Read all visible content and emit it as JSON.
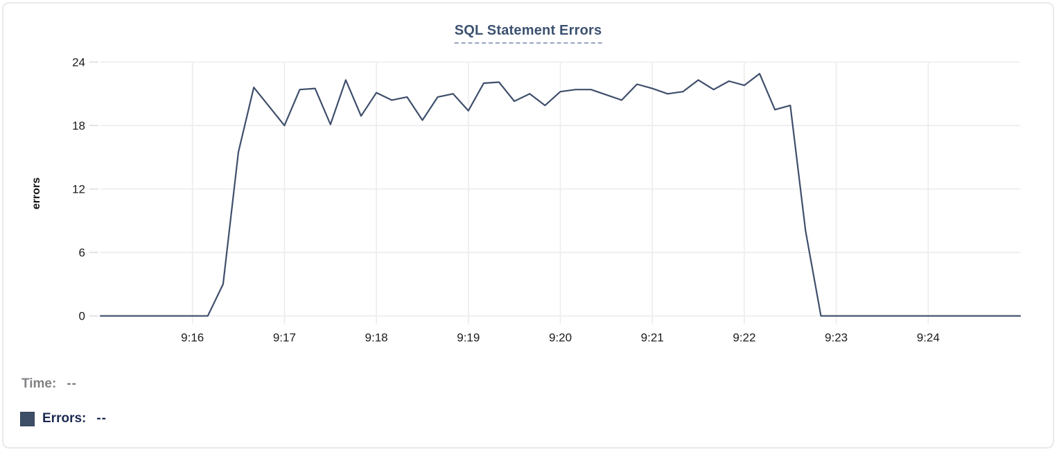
{
  "chart_data": {
    "type": "line",
    "title": "SQL Statement Errors",
    "xlabel": "",
    "ylabel": "errors",
    "ylim": [
      0,
      24
    ],
    "y_ticks": [
      0,
      6,
      12,
      18,
      24
    ],
    "x_tick_labels": [
      "9:16",
      "9:17",
      "9:18",
      "9:19",
      "9:20",
      "9:21",
      "9:22",
      "9:23",
      "9:24"
    ],
    "x_tick_seconds": [
      60,
      120,
      180,
      240,
      300,
      360,
      420,
      480,
      540
    ],
    "x_domain_seconds": [
      0,
      600
    ],
    "x_domain_times": [
      "9:15:00",
      "9:25:00"
    ],
    "grid": true,
    "legend_position": "none",
    "series": [
      {
        "name": "Errors",
        "color": "#3e4e6b",
        "points_sec_value": [
          [
            0,
            0
          ],
          [
            10,
            0
          ],
          [
            20,
            0
          ],
          [
            30,
            0
          ],
          [
            40,
            0
          ],
          [
            50,
            0
          ],
          [
            60,
            0
          ],
          [
            70,
            0
          ],
          [
            80,
            3
          ],
          [
            90,
            15.5
          ],
          [
            100,
            21.6
          ],
          [
            110,
            19.8
          ],
          [
            120,
            18
          ],
          [
            130,
            21.4
          ],
          [
            140,
            21.5
          ],
          [
            150,
            18.1
          ],
          [
            160,
            22.3
          ],
          [
            170,
            18.9
          ],
          [
            180,
            21.1
          ],
          [
            190,
            20.4
          ],
          [
            200,
            20.7
          ],
          [
            210,
            18.5
          ],
          [
            220,
            20.7
          ],
          [
            230,
            21
          ],
          [
            240,
            19.4
          ],
          [
            250,
            22
          ],
          [
            260,
            22.1
          ],
          [
            270,
            20.3
          ],
          [
            280,
            21
          ],
          [
            290,
            19.9
          ],
          [
            300,
            21.2
          ],
          [
            310,
            21.4
          ],
          [
            320,
            21.4
          ],
          [
            330,
            20.9
          ],
          [
            340,
            20.4
          ],
          [
            350,
            21.9
          ],
          [
            360,
            21.5
          ],
          [
            370,
            21
          ],
          [
            380,
            21.2
          ],
          [
            390,
            22.3
          ],
          [
            400,
            21.4
          ],
          [
            410,
            22.2
          ],
          [
            420,
            21.8
          ],
          [
            430,
            22.9
          ],
          [
            440,
            19.5
          ],
          [
            450,
            19.9
          ],
          [
            460,
            8
          ],
          [
            470,
            0
          ],
          [
            480,
            0
          ],
          [
            490,
            0
          ],
          [
            500,
            0
          ],
          [
            510,
            0
          ],
          [
            520,
            0
          ],
          [
            530,
            0
          ],
          [
            540,
            0
          ],
          [
            550,
            0
          ],
          [
            560,
            0
          ],
          [
            570,
            0
          ],
          [
            580,
            0
          ],
          [
            590,
            0
          ],
          [
            600,
            0
          ]
        ]
      }
    ]
  },
  "readout": {
    "time_label": "Time:",
    "time_value": "--",
    "errors_label": "Errors:",
    "errors_value": "--",
    "swatch_color": "#3d4e66"
  },
  "colors": {
    "line": "#3e4e6b",
    "title": "#3d5270",
    "title_underline": "#97a5c0",
    "gridline": "#ececee",
    "tick_text": "#1b1b1d",
    "time_row_text": "#818186",
    "errors_row_text": "#1d2a52",
    "card_border": "#e8e9ed"
  }
}
